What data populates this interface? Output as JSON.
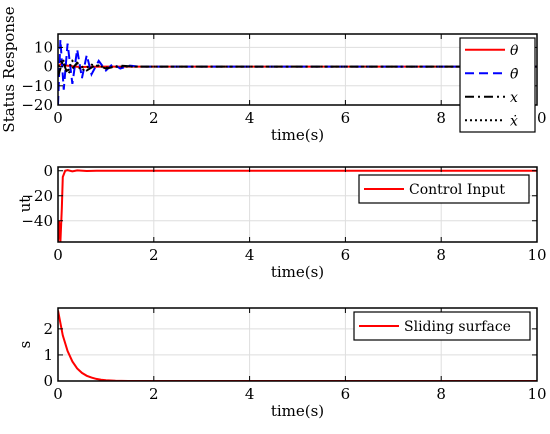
{
  "chart_data": [
    {
      "type": "line",
      "ylabel": "Status Response",
      "xlabel": "time(s)",
      "xlim": [
        0,
        10
      ],
      "ylim": [
        -20,
        17
      ],
      "xticks": [
        0,
        2,
        4,
        6,
        8,
        10
      ],
      "yticks": [
        -20,
        -10,
        0,
        10
      ],
      "grid": true,
      "legend": "top-right",
      "series": [
        {
          "name": "θ",
          "style": "solid",
          "color": "#ff0000",
          "x": [
            0,
            0.05,
            0.1,
            0.2,
            0.3,
            0.4,
            0.5,
            0.7,
            1.0,
            1.5,
            2,
            10
          ],
          "y": [
            0,
            1.2,
            0.9,
            0.5,
            0.2,
            -0.1,
            -0.2,
            -0.1,
            0,
            0,
            0,
            0
          ]
        },
        {
          "name": "θ̇",
          "style": "dashed",
          "color": "#0000ff",
          "x": [
            0,
            0.05,
            0.12,
            0.2,
            0.3,
            0.4,
            0.5,
            0.6,
            0.7,
            0.85,
            1.0,
            1.15,
            1.3,
            1.5,
            1.7,
            2.0,
            10
          ],
          "y": [
            -20,
            14,
            -12,
            12,
            -9,
            9,
            -6,
            6,
            -4,
            3,
            -2,
            1.5,
            -1,
            0.5,
            0,
            0,
            0
          ]
        },
        {
          "name": "x",
          "style": "dashdot",
          "color": "#000000",
          "x": [
            0,
            0.1,
            0.2,
            0.4,
            0.6,
            0.8,
            1.0,
            1.3,
            1.6,
            2.0,
            10
          ],
          "y": [
            -5,
            3,
            -4,
            2,
            -2,
            1,
            -1,
            0.5,
            0,
            0,
            0
          ]
        },
        {
          "name": "ẋ",
          "style": "dotted",
          "color": "#000000",
          "x": [
            0,
            0.1,
            0.2,
            0.3,
            0.5,
            0.7,
            1.0,
            1.3,
            2.0,
            10
          ],
          "y": [
            0,
            4,
            -3,
            3,
            -2,
            1,
            -0.5,
            0,
            0,
            0
          ]
        }
      ]
    },
    {
      "type": "line",
      "ylabel": "ut",
      "xlabel": "time(s)",
      "xlim": [
        0,
        10
      ],
      "ylim": [
        -57,
        3
      ],
      "xticks": [
        0,
        2,
        4,
        6,
        8,
        10
      ],
      "yticks": [
        -40,
        -20,
        0
      ],
      "grid": true,
      "legend": "top-right",
      "series": [
        {
          "name": "Control Input",
          "style": "solid",
          "color": "#ff0000",
          "x": [
            0,
            0.02,
            0.05,
            0.08,
            0.1,
            0.15,
            0.2,
            0.3,
            0.4,
            0.6,
            0.8,
            1.0,
            10
          ],
          "y": [
            -57,
            -40,
            -57,
            -30,
            -5,
            0,
            0.5,
            -0.5,
            0.3,
            -0.2,
            0,
            0,
            0
          ]
        }
      ]
    },
    {
      "type": "line",
      "ylabel": "s",
      "xlabel": "time(s)",
      "xlim": [
        0,
        10
      ],
      "ylim": [
        0,
        2.8
      ],
      "xticks": [
        0,
        2,
        4,
        6,
        8,
        10
      ],
      "yticks": [
        0,
        1,
        2
      ],
      "grid": true,
      "legend": "top-right",
      "series": [
        {
          "name": "Sliding surface",
          "style": "solid",
          "color": "#ff0000",
          "x": [
            0,
            0.1,
            0.2,
            0.3,
            0.4,
            0.5,
            0.6,
            0.7,
            0.8,
            0.9,
            1.0,
            1.2,
            1.5,
            2,
            10
          ],
          "y": [
            2.7,
            1.75,
            1.15,
            0.75,
            0.48,
            0.31,
            0.2,
            0.13,
            0.08,
            0.05,
            0.03,
            0.01,
            0,
            0,
            0
          ]
        }
      ]
    }
  ]
}
